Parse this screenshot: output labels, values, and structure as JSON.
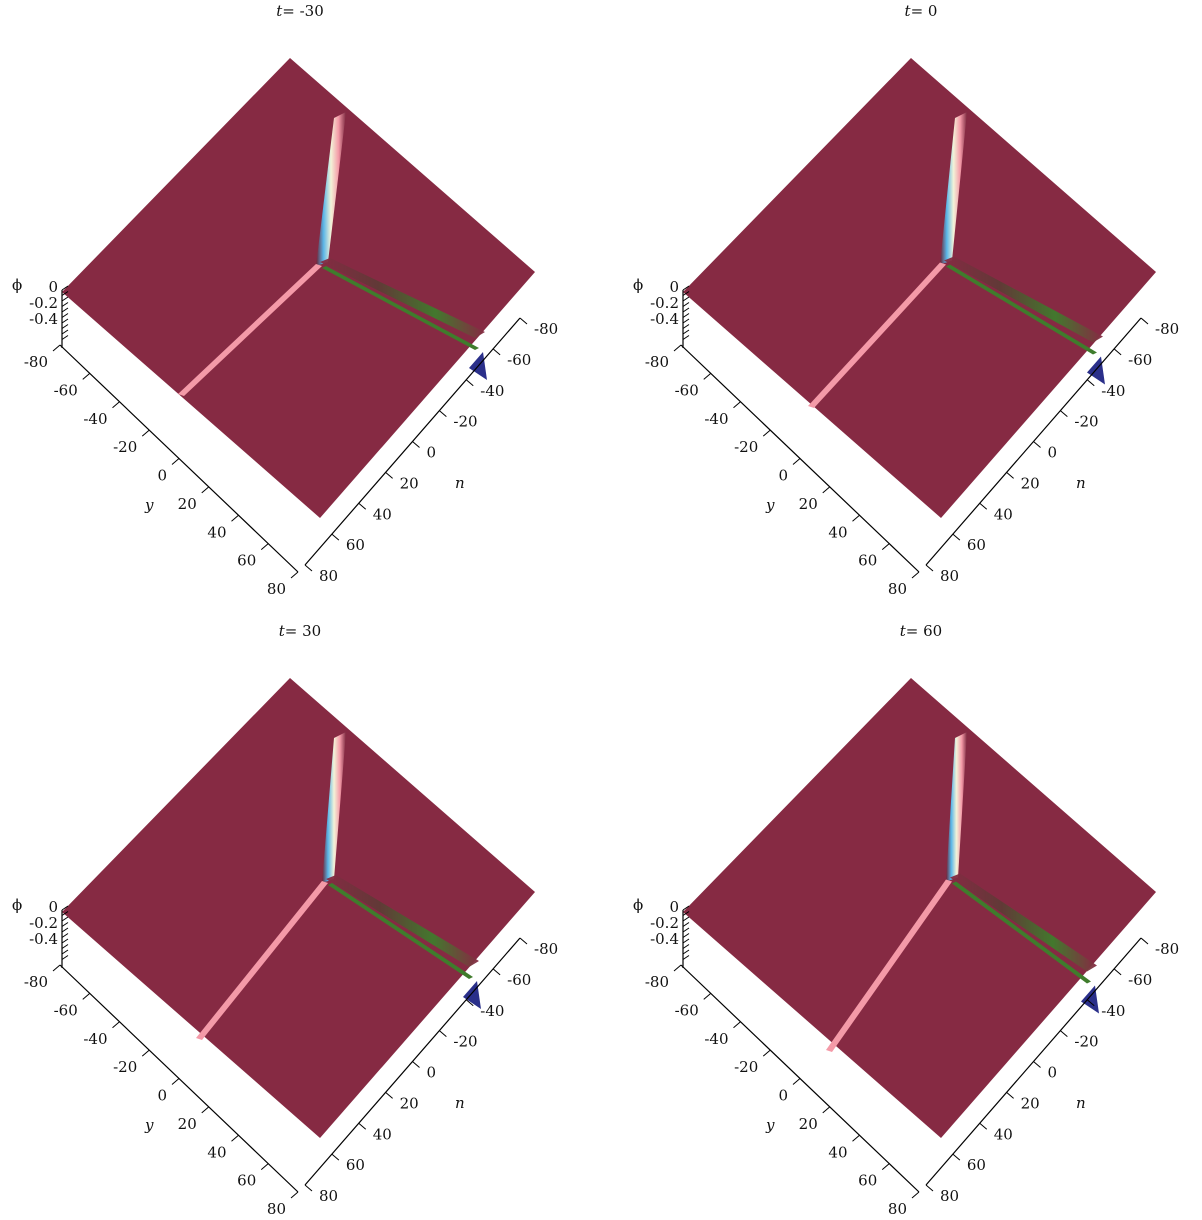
{
  "chart_data": [
    {
      "type": "surface",
      "title_var": "t",
      "title_eq": "=",
      "title_val": "-30",
      "t": -30,
      "xlabel": "y",
      "ylabel": "n",
      "zlabel": "ϕ",
      "y_ticks": [
        "-80",
        "-60",
        "-40",
        "-20",
        "0",
        "20",
        "40",
        "60",
        "80"
      ],
      "n_ticks": [
        "-80",
        "-60",
        "-40",
        "-20",
        "0",
        "20",
        "40",
        "60",
        "80"
      ],
      "z_ticks": [
        "0",
        "-0.2",
        "-0.4"
      ],
      "xlim": [
        -80,
        80
      ],
      "ylim": [
        -80,
        80
      ],
      "wave_n_position": -50,
      "colors": {
        "surface": "#862a43",
        "dip_green": "#3f7c2c",
        "dip_blue": "#2a2f8a",
        "ridge": "#f49aa8"
      }
    },
    {
      "type": "surface",
      "title_var": "t",
      "title_eq": "=",
      "title_val": "0",
      "t": 0,
      "xlabel": "y",
      "ylabel": "n",
      "zlabel": "ϕ",
      "y_ticks": [
        "-80",
        "-60",
        "-40",
        "-20",
        "0",
        "20",
        "40",
        "60",
        "80"
      ],
      "n_ticks": [
        "-80",
        "-60",
        "-40",
        "-20",
        "0",
        "20",
        "40",
        "60",
        "80"
      ],
      "z_ticks": [
        "0",
        "-0.2",
        "-0.4"
      ],
      "xlim": [
        -80,
        80
      ],
      "ylim": [
        -80,
        80
      ],
      "wave_n_position": -35,
      "colors": {
        "surface": "#862a43",
        "dip_green": "#3f7c2c",
        "dip_blue": "#2a2f8a",
        "ridge": "#f49aa8"
      }
    },
    {
      "type": "surface",
      "title_var": "t",
      "title_eq": "=",
      "title_val": "30",
      "t": 30,
      "xlabel": "y",
      "ylabel": "n",
      "zlabel": "ϕ",
      "y_ticks": [
        "-80",
        "-60",
        "-40",
        "-20",
        "0",
        "20",
        "40",
        "60",
        "80"
      ],
      "n_ticks": [
        "-80",
        "-60",
        "-40",
        "-20",
        "0",
        "20",
        "40",
        "60",
        "80"
      ],
      "z_ticks": [
        "0",
        "-0.2",
        "-0.4"
      ],
      "xlim": [
        -80,
        80
      ],
      "ylim": [
        -80,
        80
      ],
      "wave_n_position": -20,
      "colors": {
        "surface": "#862a43",
        "dip_green": "#3f7c2c",
        "dip_blue": "#2a2f8a",
        "ridge": "#f49aa8"
      }
    },
    {
      "type": "surface",
      "title_var": "t",
      "title_eq": "=",
      "title_val": "60",
      "t": 60,
      "xlabel": "y",
      "ylabel": "n",
      "zlabel": "ϕ",
      "y_ticks": [
        "-80",
        "-60",
        "-40",
        "-20",
        "0",
        "20",
        "40",
        "60",
        "80"
      ],
      "n_ticks": [
        "-80",
        "-60",
        "-40",
        "-20",
        "0",
        "20",
        "40",
        "60",
        "80"
      ],
      "z_ticks": [
        "0",
        "-0.2",
        "-0.4"
      ],
      "xlim": [
        -80,
        80
      ],
      "ylim": [
        -80,
        80
      ],
      "wave_n_position": -5,
      "colors": {
        "surface": "#862a43",
        "dip_green": "#3f7c2c",
        "dip_blue": "#2a2f8a",
        "ridge": "#f49aa8"
      }
    }
  ]
}
